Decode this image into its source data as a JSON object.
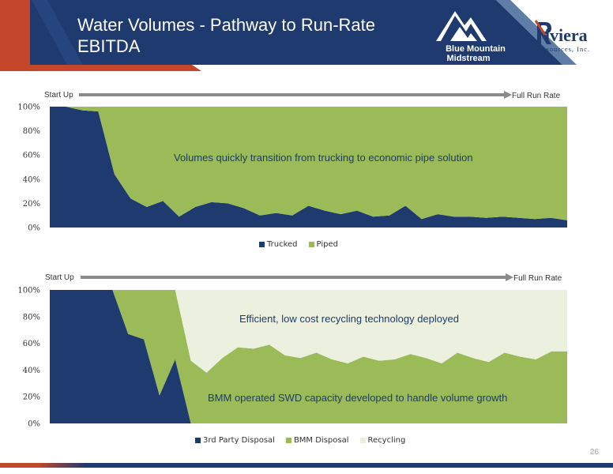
{
  "header": {
    "title": "Water Volumes - Pathway to Run-Rate EBITDA",
    "logo_bmm_line1": "Blue Mountain",
    "logo_bmm_line2": "Midstream",
    "logo_riviera_name": "Riviera",
    "logo_riviera_sub": "Resources, Inc."
  },
  "colors": {
    "navy": "#1f3a6e",
    "green": "#9bbb59",
    "light": "#ebf1de",
    "accent_red": "#c4472b"
  },
  "chart_data": [
    {
      "type": "area",
      "stacked": "percent",
      "arrow_left": "Start Up",
      "arrow_right": "Full Run Rate",
      "annotation": "Volumes quickly transition from trucking to economic pipe solution",
      "ylim": [
        0,
        100
      ],
      "yticks": [
        "0%",
        "20%",
        "40%",
        "60%",
        "80%",
        "100%"
      ],
      "legend_position": "bottom",
      "series": [
        {
          "name": "Trucked",
          "color": "#1f3a6e",
          "values": [
            100,
            100,
            97,
            96,
            44,
            24,
            17,
            22,
            9,
            17,
            21,
            20,
            16,
            10,
            12,
            10,
            18,
            14,
            11,
            14,
            9,
            10,
            18,
            7,
            11,
            9,
            9,
            8,
            9,
            8,
            7,
            8,
            6
          ]
        },
        {
          "name": "Piped",
          "color": "#9bbb59",
          "values": [
            0,
            0,
            3,
            4,
            56,
            76,
            83,
            78,
            91,
            83,
            79,
            80,
            84,
            90,
            88,
            90,
            82,
            86,
            89,
            86,
            91,
            90,
            82,
            93,
            89,
            91,
            91,
            92,
            91,
            92,
            93,
            92,
            94
          ]
        }
      ]
    },
    {
      "type": "area",
      "stacked": "percent",
      "arrow_left": "Start Up",
      "arrow_right": "Full Run Rate",
      "annotation": "Efficient, low cost recycling technology deployed",
      "annotation2": "BMM operated SWD capacity developed to handle volume growth",
      "ylim": [
        0,
        100
      ],
      "yticks": [
        "0%",
        "20%",
        "40%",
        "60%",
        "80%",
        "100%"
      ],
      "legend_position": "bottom",
      "series": [
        {
          "name": "3rd Party Disposal",
          "color": "#1f3a6e",
          "values": [
            100,
            100,
            100,
            100,
            100,
            67,
            63,
            21,
            48,
            0,
            0,
            0,
            0,
            0,
            0,
            0,
            0,
            0,
            0,
            0,
            0,
            0,
            0,
            0,
            0,
            0,
            0,
            0,
            0,
            0,
            0,
            0,
            0,
            0
          ]
        },
        {
          "name": "BMM Disposal",
          "color": "#9bbb59",
          "values": [
            0,
            0,
            0,
            0,
            0,
            33,
            37,
            79,
            52,
            47,
            38,
            49,
            57,
            56,
            59,
            51,
            49,
            53,
            48,
            45,
            50,
            47,
            48,
            52,
            49,
            45,
            53,
            49,
            46,
            53,
            50,
            48,
            54,
            54
          ]
        },
        {
          "name": "Recycling",
          "color": "#ebf1de",
          "values": [
            0,
            0,
            0,
            0,
            0,
            0,
            0,
            0,
            0,
            53,
            62,
            51,
            43,
            44,
            41,
            49,
            51,
            47,
            52,
            55,
            50,
            53,
            52,
            48,
            51,
            55,
            47,
            51,
            54,
            47,
            50,
            52,
            46,
            46
          ]
        }
      ]
    }
  ],
  "page_number": "26"
}
